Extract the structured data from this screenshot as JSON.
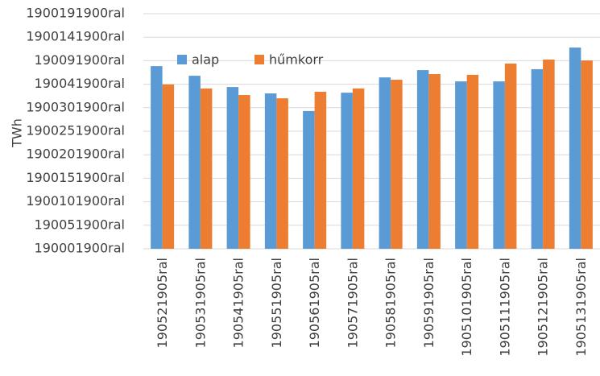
{
  "chart_data": {
    "type": "bar",
    "axis_label": "TWh",
    "categories": [
      "190521905ral",
      "190531905ral",
      "190541905ral",
      "190551905ral",
      "190561905ral",
      "190571905ral",
      "190581905ral",
      "190591905ral",
      "1905101905ral",
      "1905111905ral",
      "1905121905ral",
      "1905131905ral"
    ],
    "series": [
      {
        "name": "alap",
        "color": "#5b9bd5",
        "values": [
          7.77,
          7.36,
          6.88,
          6.61,
          5.86,
          6.64,
          7.29,
          7.6,
          7.12,
          7.12,
          7.64,
          8.56
        ]
      },
      {
        "name": "hűmkorr",
        "color": "#ed7d31",
        "values": [
          6.99,
          6.82,
          6.54,
          6.4,
          6.68,
          6.82,
          7.19,
          7.43,
          7.4,
          7.88,
          8.05,
          8.01
        ]
      }
    ],
    "ylim": [
      0,
      10
    ],
    "yticks": [
      {
        "value": 0,
        "label": "190001900ral"
      },
      {
        "value": 1,
        "label": "190051900ral"
      },
      {
        "value": 2,
        "label": "1900101900ral"
      },
      {
        "value": 3,
        "label": "1900151900ral"
      },
      {
        "value": 4,
        "label": "1900201900ral"
      },
      {
        "value": 5,
        "label": "1900251900ral"
      },
      {
        "value": 6,
        "label": "1900301900ral"
      },
      {
        "value": 7,
        "label": "190041900ral"
      },
      {
        "value": 8,
        "label": "190091900ral"
      },
      {
        "value": 9,
        "label": "1900141900ral"
      },
      {
        "value": 10,
        "label": "1900191900ral"
      }
    ],
    "grid": true,
    "legend": "top"
  }
}
